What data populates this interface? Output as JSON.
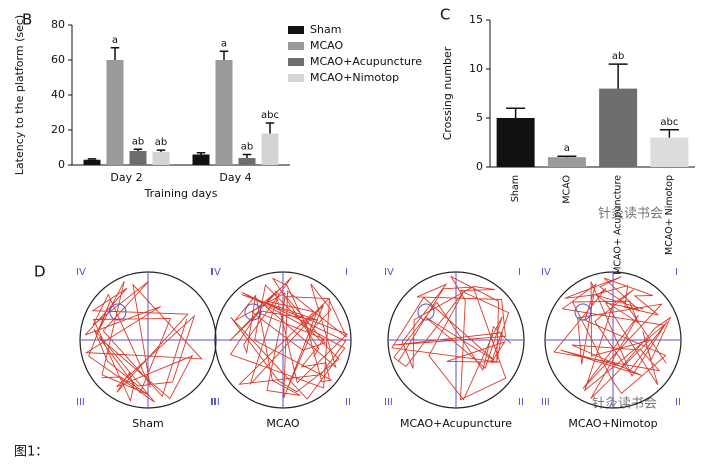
{
  "chart_data": [
    {
      "type": "grouped_bar",
      "panel": "B",
      "ylabel": "Latency to the platform (sec)",
      "xlabel": "Training days",
      "categories": [
        "Day 2",
        "Day 4"
      ],
      "ylim": [
        0,
        80
      ],
      "yticks": [
        0,
        20,
        40,
        60,
        80
      ],
      "series": [
        {
          "name": "Sham",
          "color": "#111111",
          "values": [
            3,
            6
          ],
          "errors": [
            0.5,
            1
          ]
        },
        {
          "name": "MCAO",
          "color": "#9a9a9a",
          "values": [
            60,
            60
          ],
          "errors": [
            7,
            5
          ],
          "labels": [
            "a",
            "a"
          ]
        },
        {
          "name": "MCAO+Acupuncture",
          "color": "#6e6e6e",
          "values": [
            8,
            4
          ],
          "errors": [
            1,
            2
          ],
          "labels": [
            "ab",
            "ab"
          ]
        },
        {
          "name": "MCAO+Nimotop",
          "color": "#d4d4d4",
          "values": [
            7.5,
            18
          ],
          "errors": [
            1,
            6
          ],
          "labels": [
            "ab",
            "abc"
          ]
        }
      ]
    },
    {
      "type": "bar",
      "panel": "C",
      "ylabel": "Crossing number",
      "categories": [
        "Sham",
        "MCAO",
        "MCAO+ Acupuncture",
        "MCAO+ Nimotop"
      ],
      "values": [
        5,
        1,
        8,
        3
      ],
      "errors": [
        1,
        0.1,
        2.5,
        0.8
      ],
      "labels": [
        null,
        "a",
        "ab",
        "abc"
      ],
      "colors": [
        "#111111",
        "#9a9a9a",
        "#6e6e6e",
        "#dcdcdc"
      ],
      "ylim": [
        0,
        15
      ],
      "yticks": [
        0,
        5,
        10,
        15
      ]
    }
  ],
  "panel_d": {
    "letter": "D",
    "quadrants": [
      "IV",
      "I",
      "III",
      "II"
    ],
    "labels": [
      "Sham",
      "MCAO",
      "MCAO+Acupuncture",
      "MCAO+Nimotop"
    ]
  },
  "watermark": "针灸读书会",
  "caption": "图1："
}
